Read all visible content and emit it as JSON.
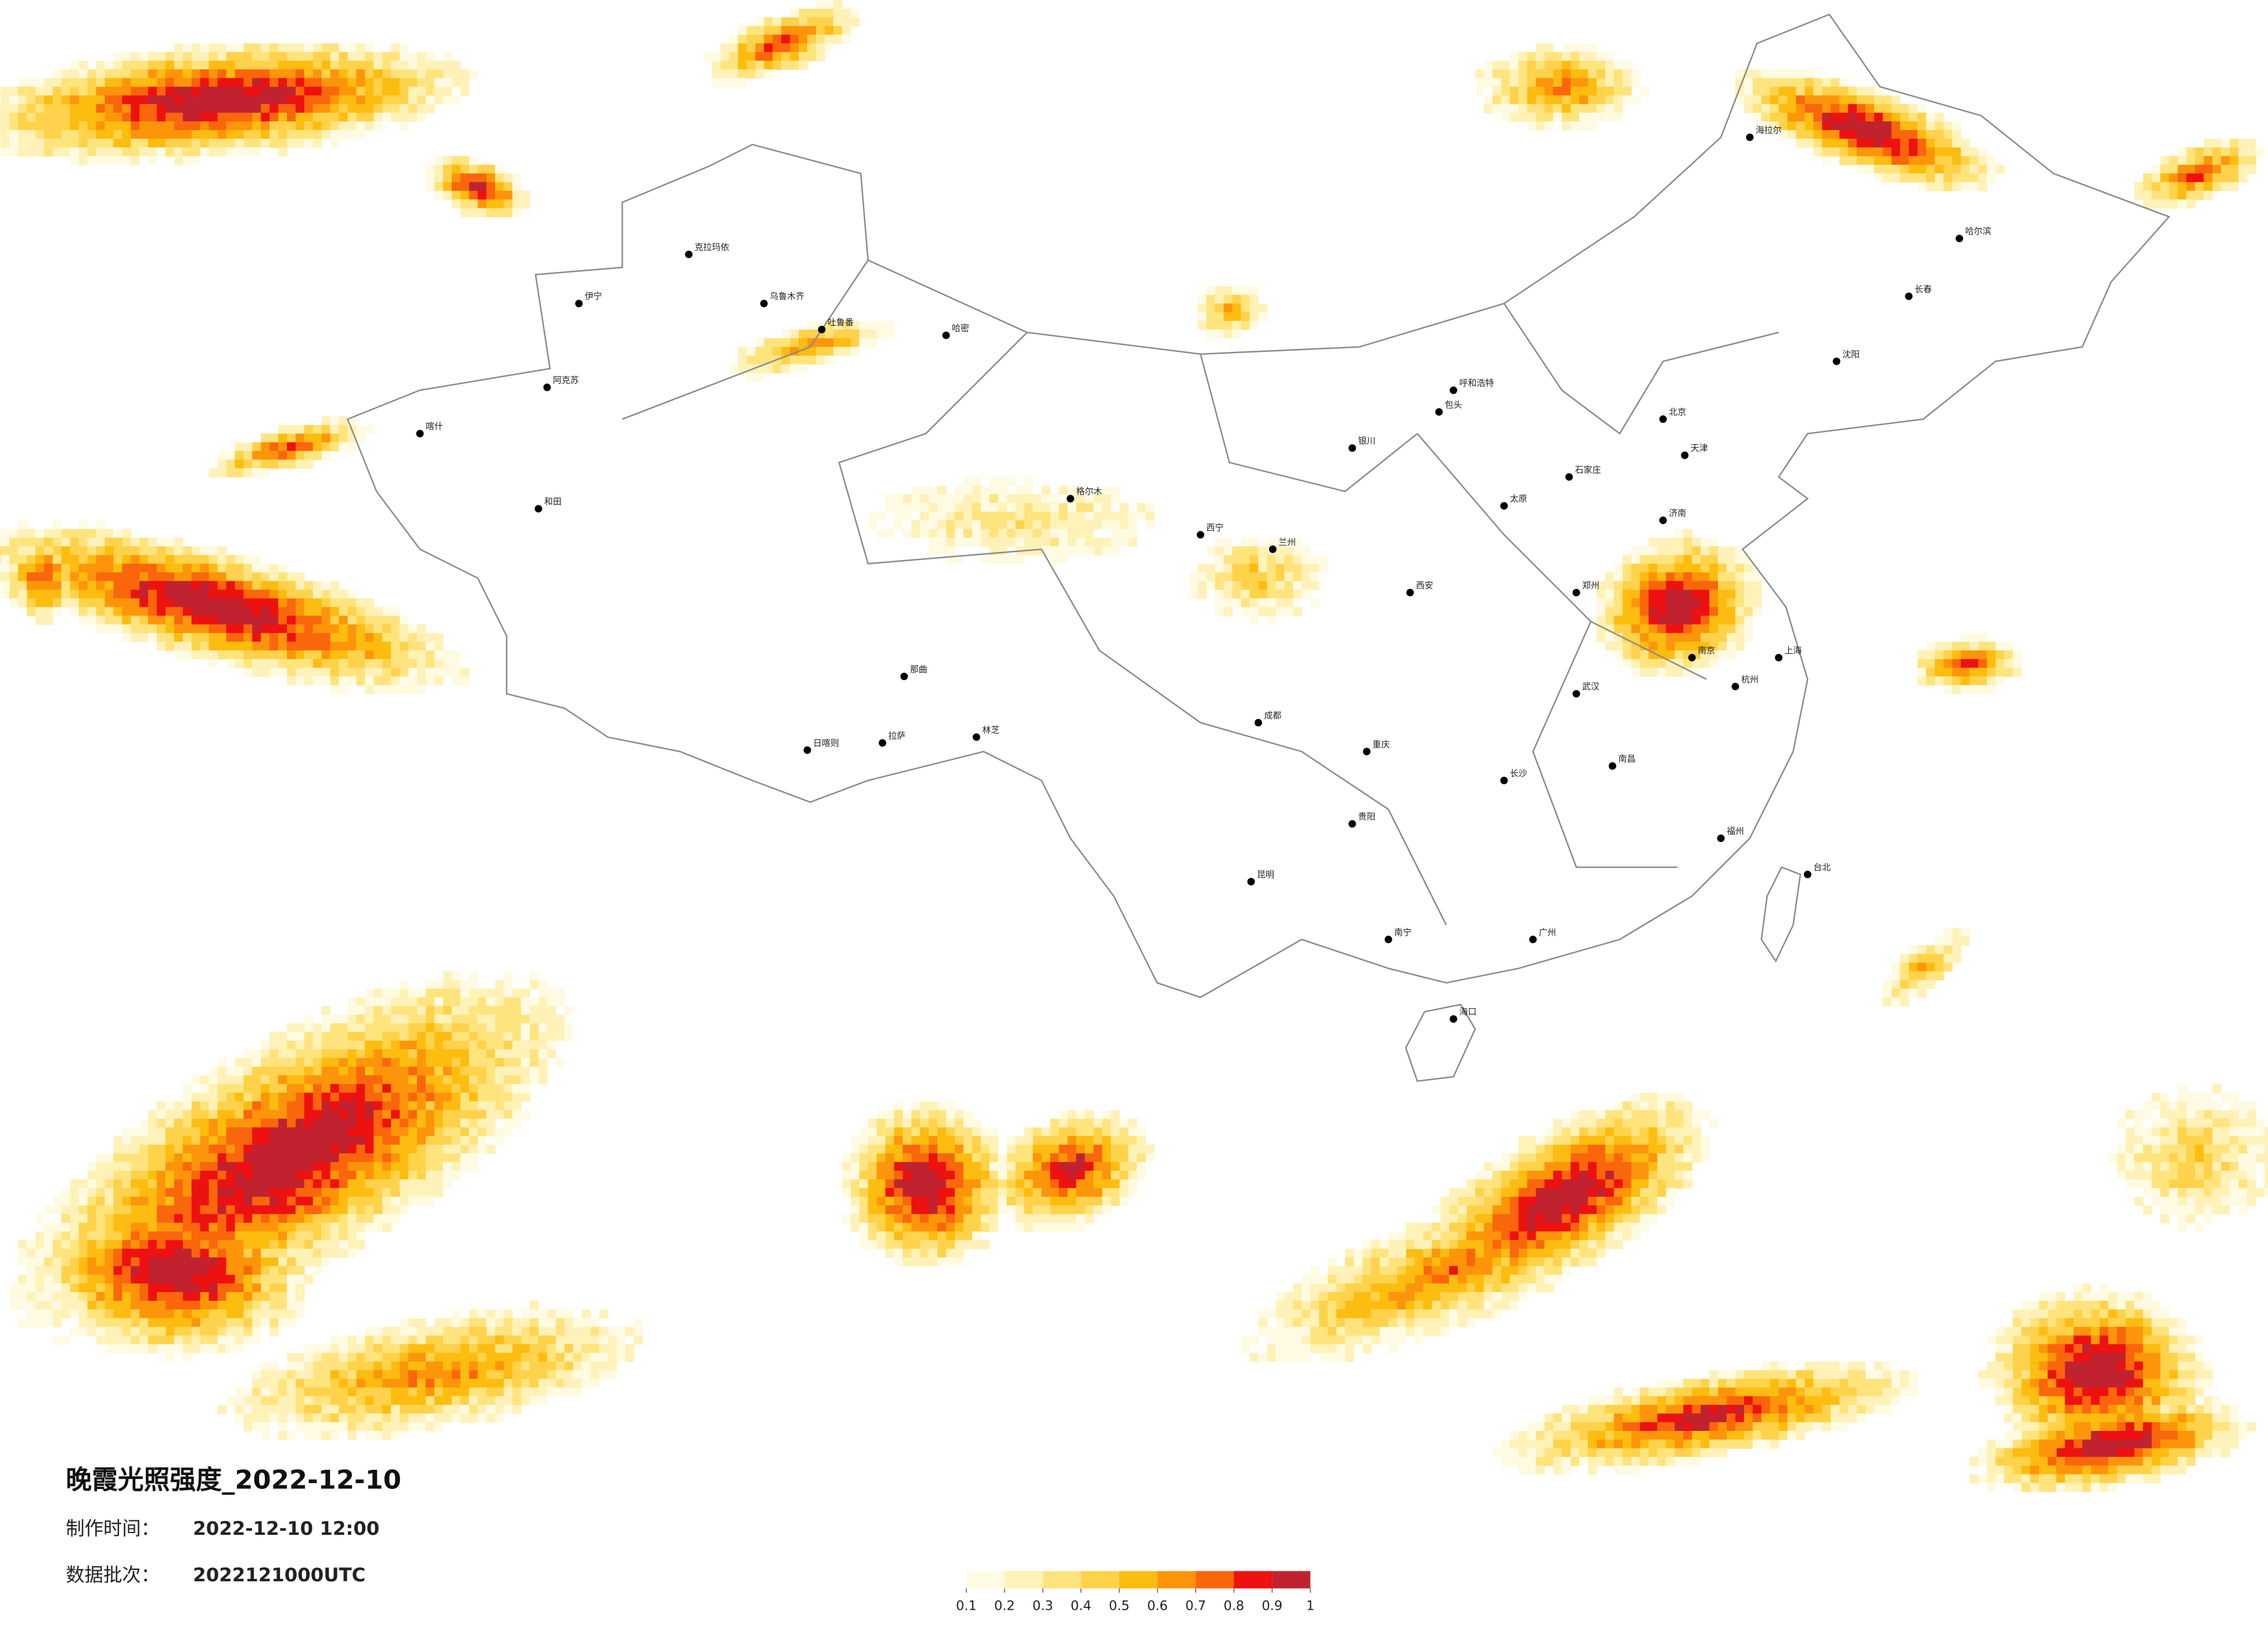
{
  "title": "晚霞光照强度_2022-12-10",
  "made_time_label": "制作时间：",
  "made_time": "2022-12-10 12:00",
  "batch_label": "数据批次：",
  "batch": "2022121000UTC",
  "legend": {
    "colors": [
      "#fffbe3",
      "#fff2b8",
      "#ffe47e",
      "#fed24a",
      "#fdbc10",
      "#fd950b",
      "#fa660c",
      "#ee1111",
      "#c0232f"
    ],
    "ticks": [
      0.1,
      0.2,
      0.3,
      0.4,
      0.5,
      0.6,
      0.7,
      0.8,
      0.9,
      1
    ]
  },
  "cities": [
    "伊宁",
    "克拉玛依",
    "乌鲁木齐",
    "吐鲁番",
    "哈密",
    "阿克苏",
    "和田",
    "喀什",
    "日喀则",
    "拉萨",
    "林芝",
    "那曲",
    "格尔木",
    "西宁",
    "兰州",
    "银川",
    "呼和浩特",
    "包头",
    "太原",
    "石家庄",
    "郑州",
    "西安",
    "成都",
    "重庆",
    "贵阳",
    "昆明",
    "南宁",
    "广州",
    "长沙",
    "武汉",
    "南昌",
    "福州",
    "杭州",
    "上海",
    "南京",
    "济南",
    "北京",
    "天津",
    "沈阳",
    "长春",
    "哈尔滨",
    "海口",
    "台北",
    "海拉尔"
  ]
}
